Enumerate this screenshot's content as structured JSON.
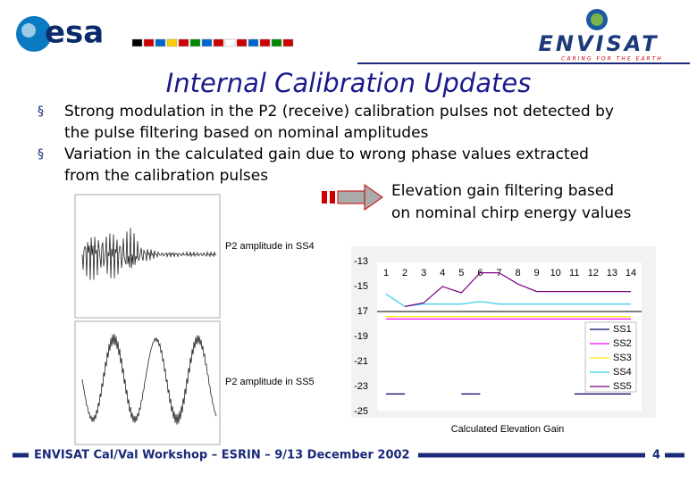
{
  "header": {
    "logo_left": "esa",
    "logo_right": "ENVISAT",
    "tagline": "CARING FOR THE EARTH"
  },
  "title": "Internal Calibration Updates",
  "bullets": [
    {
      "lines": [
        "Strong modulation in the P2 (receive) calibration pulses not detected by",
        "the pulse filtering based on nominal amplitudes"
      ]
    },
    {
      "lines": [
        "Variation in the calculated gain due to wrong phase values extracted",
        "from the calibration pulses"
      ]
    }
  ],
  "arrow_text": {
    "lines": [
      "Elevation gain filtering based",
      "on nominal chirp energy values"
    ]
  },
  "plots": [
    {
      "label": "P2 amplitude in SS4"
    },
    {
      "label": "P2 amplitude in SS5"
    }
  ],
  "chart_data": {
    "type": "line",
    "title": "Calculated Elevation Gain",
    "x": [
      1,
      2,
      3,
      4,
      5,
      6,
      7,
      8,
      9,
      10,
      11,
      12,
      13,
      14
    ],
    "xlim": [
      1,
      14
    ],
    "ylim": [
      -25,
      -13
    ],
    "yticks": [
      -13,
      -15,
      {
        "value": -17,
        "label": "17"
      },
      -19,
      -21,
      -23,
      -25
    ],
    "x_axis_crossing": -17,
    "grid": false,
    "legend": "right",
    "series": [
      {
        "name": "SS1",
        "color": "#000066",
        "values": [
          -23.6,
          -23.6,
          null,
          null,
          -23.6,
          -23.6,
          null,
          null,
          null,
          null,
          -23.6,
          -23.6,
          -23.6,
          -23.6
        ]
      },
      {
        "name": "SS2",
        "color": "#ff00ff",
        "values": [
          -17.6,
          -17.6,
          -17.6,
          -17.6,
          -17.6,
          -17.6,
          -17.6,
          -17.6,
          -17.6,
          -17.6,
          -17.6,
          -17.6,
          -17.6,
          -17.6
        ]
      },
      {
        "name": "SS3",
        "color": "#ffee00",
        "values": [
          -17.4,
          -17.4,
          -17.4,
          -17.4,
          -17.4,
          -17.4,
          -17.4,
          -17.4,
          -17.4,
          -17.4,
          -17.4,
          -17.4,
          -17.4,
          -17.4
        ]
      },
      {
        "name": "SS4",
        "color": "#33ccee",
        "values": [
          -15.6,
          -16.6,
          -16.4,
          -16.4,
          -16.4,
          -16.2,
          -16.4,
          -16.4,
          -16.4,
          -16.4,
          -16.4,
          -16.4,
          -16.4,
          -16.4
        ]
      },
      {
        "name": "SS5",
        "color": "#800080",
        "values": [
          null,
          -16.6,
          -16.3,
          -15.0,
          -15.5,
          -13.9,
          -13.9,
          -14.8,
          -15.4,
          -15.4,
          -15.4,
          -15.4,
          -15.4,
          -15.4
        ]
      }
    ]
  },
  "footer": {
    "text": "ENVISAT Cal/Val Workshop – ESRIN – 9/13 December 2002",
    "page": "4"
  }
}
